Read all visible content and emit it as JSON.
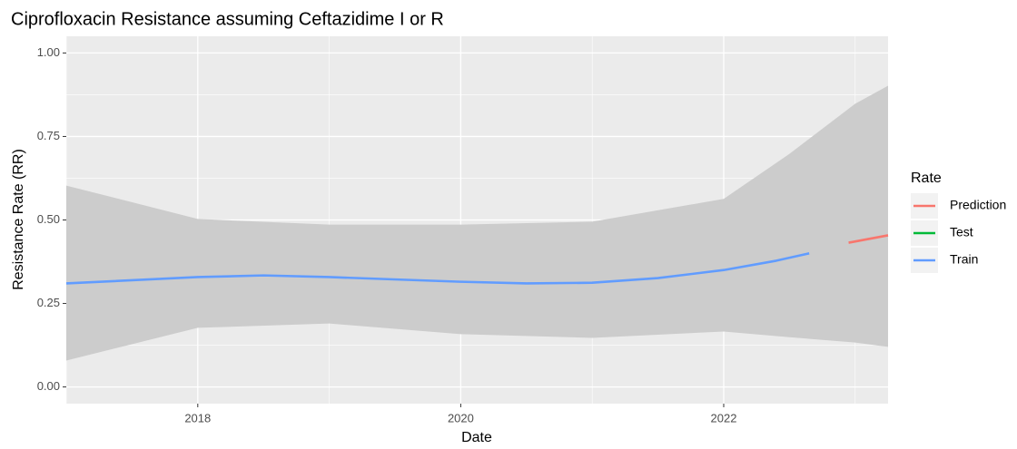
{
  "chart_data": {
    "type": "line",
    "title": "Ciprofloxacin  Resistance assuming  Ceftazidime I or R",
    "x_label": "Date",
    "y_label": "Resistance Rate (RR)",
    "legend_title": "Rate",
    "legend": "right",
    "grid": true,
    "xlim": [
      2017.0,
      2023.25
    ],
    "xticks": [
      2018,
      2020,
      2022
    ],
    "xminor_ticks": [
      2017,
      2019,
      2021,
      2023
    ],
    "ylim": [
      -0.05,
      1.05
    ],
    "yticks": [
      {
        "value": 0,
        "label": "0.00"
      },
      {
        "value": 0.25,
        "label": "0.25"
      },
      {
        "value": 0.5,
        "label": "0.50"
      },
      {
        "value": 0.75,
        "label": "0.75"
      },
      {
        "value": 1,
        "label": "1.00"
      }
    ],
    "yminor_ticks": [
      0.125,
      0.375,
      0.625,
      0.875
    ],
    "band": {
      "color": "#cccccc",
      "x": [
        2017.0,
        2018,
        2019,
        2020,
        2021,
        2022,
        2022.5,
        2023,
        2023.25
      ],
      "upper": [
        0.603,
        0.503,
        0.486,
        0.486,
        0.495,
        0.563,
        0.698,
        0.848,
        0.902
      ],
      "lower": [
        0.079,
        0.177,
        0.19,
        0.158,
        0.147,
        0.166,
        0.149,
        0.133,
        0.12
      ]
    },
    "series": [
      {
        "name": "Prediction",
        "color": "#F8766D",
        "x": [
          2022.95,
          2023.25
        ],
        "values": [
          0.432,
          0.454
        ]
      },
      {
        "name": "Test",
        "color": "#00BA38",
        "x": [],
        "values": []
      },
      {
        "name": "Train",
        "color": "#619CFF",
        "x": [
          2017.0,
          2018,
          2018.5,
          2019,
          2020,
          2020.5,
          2021,
          2021.5,
          2022,
          2022.4,
          2022.65
        ],
        "values": [
          0.31,
          0.329,
          0.334,
          0.329,
          0.315,
          0.31,
          0.312,
          0.326,
          0.35,
          0.378,
          0.4
        ]
      }
    ]
  }
}
